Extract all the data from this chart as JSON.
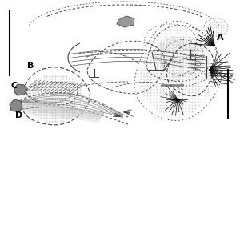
{
  "bg_color": "#ffffff",
  "label_B": "B",
  "label_A": "A",
  "label_C": "C",
  "label_D": "D",
  "line_color": "#000000",
  "dark_gray": "#444444",
  "mid_gray": "#777777",
  "light_gray": "#aaaaaa",
  "dot_gray": "#bbbbbb",
  "fill_gray": "#cccccc",
  "fig_width": 3.0,
  "fig_height": 2.92,
  "dpi": 100
}
